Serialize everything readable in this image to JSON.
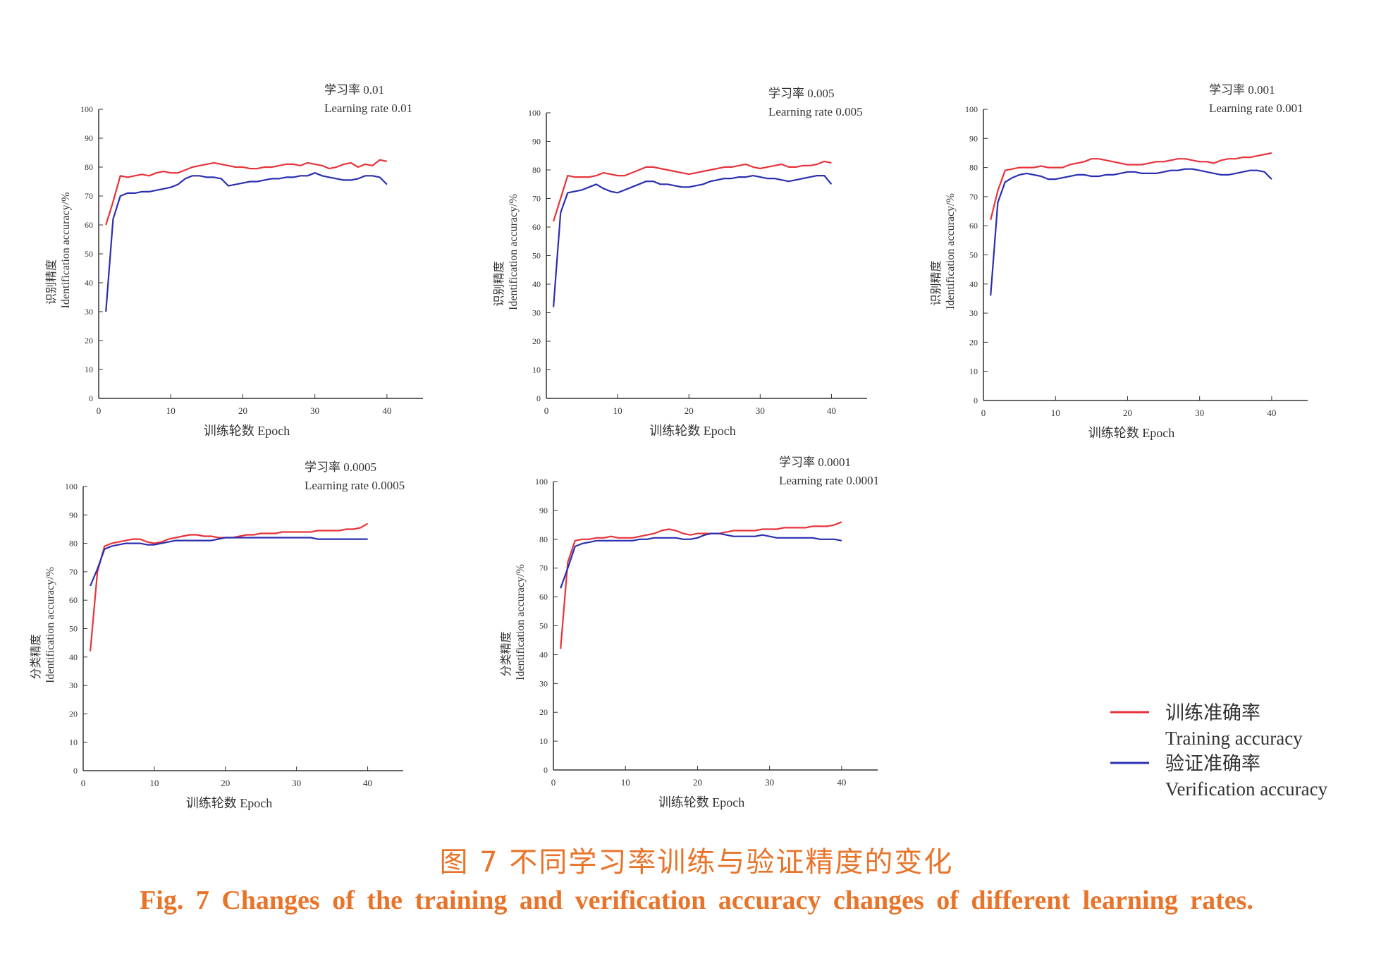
{
  "chart_data": [
    {
      "type": "line",
      "annotation_cn": "学习率 0.01",
      "annotation_en": "Learning rate 0.01",
      "ylabel_cn": "识别精度",
      "ylabel_en": "Identification accuracy/%",
      "xlabel": "训练轮数  Epoch",
      "xticks": [
        0,
        10,
        20,
        30,
        40
      ],
      "yticks": [
        0,
        10,
        20,
        30,
        40,
        50,
        60,
        70,
        80,
        90,
        100
      ],
      "xlim": [
        0,
        45
      ],
      "ylim": [
        0,
        100
      ],
      "series": [
        {
          "name": "训练准确率 Training accuracy",
          "x": [
            1,
            2,
            3,
            4,
            5,
            6,
            7,
            8,
            9,
            10,
            11,
            12,
            13,
            14,
            15,
            16,
            17,
            18,
            19,
            20,
            21,
            22,
            23,
            24,
            25,
            26,
            27,
            28,
            29,
            30,
            31,
            32,
            33,
            34,
            35,
            36,
            37,
            38,
            39,
            40
          ],
          "y": [
            60,
            68,
            77,
            76.5,
            77,
            77.5,
            77,
            78,
            78.5,
            78,
            78,
            79,
            80,
            80.5,
            81,
            81.5,
            81,
            80.5,
            80,
            80,
            79.5,
            79.5,
            80,
            80,
            80.5,
            81,
            81,
            80.5,
            81.5,
            81,
            80.5,
            79.5,
            80,
            81,
            81.5,
            80,
            81,
            80.5,
            82.5,
            82
          ]
        },
        {
          "name": "验证准确率 Verification accuracy",
          "x": [
            1,
            2,
            3,
            4,
            5,
            6,
            7,
            8,
            9,
            10,
            11,
            12,
            13,
            14,
            15,
            16,
            17,
            18,
            19,
            20,
            21,
            22,
            23,
            24,
            25,
            26,
            27,
            28,
            29,
            30,
            31,
            32,
            33,
            34,
            35,
            36,
            37,
            38,
            39,
            40
          ],
          "y": [
            30,
            62,
            70,
            71,
            71,
            71.5,
            71.5,
            72,
            72.5,
            73,
            74,
            76,
            77,
            77,
            76.5,
            76.5,
            76,
            73.5,
            74,
            74.5,
            75,
            75,
            75.5,
            76,
            76,
            76.5,
            76.5,
            77,
            77,
            78,
            77,
            76.5,
            76,
            75.5,
            75.5,
            76,
            77,
            77,
            76.5,
            74
          ]
        }
      ]
    },
    {
      "type": "line",
      "annotation_cn": "学习率 0.005",
      "annotation_en": "Learning rate 0.005",
      "ylabel_cn": "识别精度",
      "ylabel_en": "Identification accuracy/%",
      "xlabel": "训练轮数  Epoch",
      "xticks": [
        0,
        10,
        20,
        30,
        40
      ],
      "yticks": [
        0,
        10,
        20,
        30,
        40,
        50,
        60,
        70,
        80,
        90,
        100
      ],
      "xlim": [
        0,
        45
      ],
      "ylim": [
        0,
        100
      ],
      "series": [
        {
          "name": "训练准确率 Training accuracy",
          "x": [
            1,
            2,
            3,
            4,
            5,
            6,
            7,
            8,
            9,
            10,
            11,
            12,
            13,
            14,
            15,
            16,
            17,
            18,
            19,
            20,
            21,
            22,
            23,
            24,
            25,
            26,
            27,
            28,
            29,
            30,
            31,
            32,
            33,
            34,
            35,
            36,
            37,
            38,
            39,
            40
          ],
          "y": [
            62,
            70,
            78,
            77.5,
            77.5,
            77.5,
            78,
            79,
            78.5,
            78,
            78,
            79,
            80,
            81,
            81,
            80.5,
            80,
            79.5,
            79,
            78.5,
            79,
            79.5,
            80,
            80.5,
            81,
            81,
            81.5,
            82,
            81,
            80.5,
            81,
            81.5,
            82,
            81,
            81,
            81.5,
            81.5,
            82,
            83,
            82.5
          ]
        },
        {
          "name": "验证准确率 Verification accuracy",
          "x": [
            1,
            2,
            3,
            4,
            5,
            6,
            7,
            8,
            9,
            10,
            11,
            12,
            13,
            14,
            15,
            16,
            17,
            18,
            19,
            20,
            21,
            22,
            23,
            24,
            25,
            26,
            27,
            28,
            29,
            30,
            31,
            32,
            33,
            34,
            35,
            36,
            37,
            38,
            39,
            40
          ],
          "y": [
            32,
            65,
            72,
            72.5,
            73,
            74,
            75,
            73.5,
            72.5,
            72,
            73,
            74,
            75,
            76,
            76,
            75,
            75,
            74.5,
            74,
            74,
            74.5,
            75,
            76,
            76.5,
            77,
            77,
            77.5,
            77.5,
            78,
            77.5,
            77,
            77,
            76.5,
            76,
            76.5,
            77,
            77.5,
            78,
            78,
            75
          ]
        }
      ]
    },
    {
      "type": "line",
      "annotation_cn": "学习率 0.001",
      "annotation_en": "Learning rate 0.001",
      "ylabel_cn": "识别精度",
      "ylabel_en": "Identification accuracy/%",
      "xlabel": "训练轮数  Epoch",
      "xticks": [
        0,
        10,
        20,
        30,
        40
      ],
      "yticks": [
        0,
        10,
        20,
        30,
        40,
        50,
        60,
        70,
        80,
        90,
        100
      ],
      "xlim": [
        0,
        45
      ],
      "ylim": [
        0,
        100
      ],
      "series": [
        {
          "name": "训练准确率 Training accuracy",
          "x": [
            1,
            2,
            3,
            4,
            5,
            6,
            7,
            8,
            9,
            10,
            11,
            12,
            13,
            14,
            15,
            16,
            17,
            18,
            19,
            20,
            21,
            22,
            23,
            24,
            25,
            26,
            27,
            28,
            29,
            30,
            31,
            32,
            33,
            34,
            35,
            36,
            37,
            38,
            39,
            40
          ],
          "y": [
            62,
            72,
            79,
            79.5,
            80,
            80,
            80,
            80.5,
            80,
            80,
            80,
            81,
            81.5,
            82,
            83,
            83,
            82.5,
            82,
            81.5,
            81,
            81,
            81,
            81.5,
            82,
            82,
            82.5,
            83,
            83,
            82.5,
            82,
            82,
            81.5,
            82.5,
            83,
            83,
            83.5,
            83.5,
            84,
            84.5,
            85
          ]
        },
        {
          "name": "验证准确率 Verification accuracy",
          "x": [
            1,
            2,
            3,
            4,
            5,
            6,
            7,
            8,
            9,
            10,
            11,
            12,
            13,
            14,
            15,
            16,
            17,
            18,
            19,
            20,
            21,
            22,
            23,
            24,
            25,
            26,
            27,
            28,
            29,
            30,
            31,
            32,
            33,
            34,
            35,
            36,
            37,
            38,
            39,
            40
          ],
          "y": [
            36,
            68,
            75,
            76.5,
            77.5,
            78,
            77.5,
            77,
            76,
            76,
            76.5,
            77,
            77.5,
            77.5,
            77,
            77,
            77.5,
            77.5,
            78,
            78.5,
            78.5,
            78,
            78,
            78,
            78.5,
            79,
            79,
            79.5,
            79.5,
            79,
            78.5,
            78,
            77.5,
            77.5,
            78,
            78.5,
            79,
            79,
            78.5,
            76
          ]
        }
      ]
    },
    {
      "type": "line",
      "annotation_cn": "学习率 0.0005",
      "annotation_en": "Learning rate 0.0005",
      "ylabel_cn": "分类精度",
      "ylabel_en": "Identification accuracy/%",
      "xlabel": "训练轮数  Epoch",
      "xticks": [
        0,
        10,
        20,
        30,
        40
      ],
      "yticks": [
        0,
        10,
        20,
        30,
        40,
        50,
        60,
        70,
        80,
        90,
        100
      ],
      "xlim": [
        0,
        45
      ],
      "ylim": [
        0,
        100
      ],
      "series": [
        {
          "name": "训练准确率 Training accuracy",
          "x": [
            1,
            2,
            3,
            4,
            5,
            6,
            7,
            8,
            9,
            10,
            11,
            12,
            13,
            14,
            15,
            16,
            17,
            18,
            19,
            20,
            21,
            22,
            23,
            24,
            25,
            26,
            27,
            28,
            29,
            30,
            31,
            32,
            33,
            34,
            35,
            36,
            37,
            38,
            39,
            40
          ],
          "y": [
            42,
            70,
            79,
            80,
            80.5,
            81,
            81.5,
            81.5,
            80.5,
            80,
            80.5,
            81.5,
            82,
            82.5,
            83,
            83,
            82.5,
            82.5,
            82,
            82,
            82,
            82.5,
            83,
            83,
            83.5,
            83.5,
            83.5,
            84,
            84,
            84,
            84,
            84,
            84.5,
            84.5,
            84.5,
            84.5,
            85,
            85,
            85.5,
            87
          ]
        },
        {
          "name": "验证准确率 Verification accuracy",
          "x": [
            1,
            2,
            3,
            4,
            5,
            6,
            7,
            8,
            9,
            10,
            11,
            12,
            13,
            14,
            15,
            16,
            17,
            18,
            19,
            20,
            21,
            22,
            23,
            24,
            25,
            26,
            27,
            28,
            29,
            30,
            31,
            32,
            33,
            34,
            35,
            36,
            37,
            38,
            39,
            40
          ],
          "y": [
            65,
            71,
            78,
            79,
            79.5,
            80,
            80,
            80,
            79.5,
            79.5,
            80,
            80.5,
            81,
            81,
            81,
            81,
            81,
            81,
            81.5,
            82,
            82,
            82,
            82,
            82,
            82,
            82,
            82,
            82,
            82,
            82,
            82,
            82,
            81.5,
            81.5,
            81.5,
            81.5,
            81.5,
            81.5,
            81.5,
            81.5
          ]
        }
      ]
    },
    {
      "type": "line",
      "annotation_cn": "学习率 0.0001",
      "annotation_en": "Learning rate 0.0001",
      "ylabel_cn": "分类精度",
      "ylabel_en": "Identification accuracy/%",
      "xlabel": "训练轮数  Epoch",
      "xticks": [
        0,
        10,
        20,
        30,
        40
      ],
      "yticks": [
        0,
        10,
        20,
        30,
        40,
        50,
        60,
        70,
        80,
        90,
        100
      ],
      "xlim": [
        0,
        45
      ],
      "ylim": [
        0,
        100
      ],
      "series": [
        {
          "name": "训练准确率 Training accuracy",
          "x": [
            1,
            2,
            3,
            4,
            5,
            6,
            7,
            8,
            9,
            10,
            11,
            12,
            13,
            14,
            15,
            16,
            17,
            18,
            19,
            20,
            21,
            22,
            23,
            24,
            25,
            26,
            27,
            28,
            29,
            30,
            31,
            32,
            33,
            34,
            35,
            36,
            37,
            38,
            39,
            40
          ],
          "y": [
            42,
            72,
            79.5,
            80,
            80,
            80.5,
            80.5,
            81,
            80.5,
            80.5,
            80.5,
            81,
            81.5,
            82,
            83,
            83.5,
            83,
            82,
            81.5,
            82,
            82,
            82,
            82,
            82.5,
            83,
            83,
            83,
            83,
            83.5,
            83.5,
            83.5,
            84,
            84,
            84,
            84,
            84.5,
            84.5,
            84.5,
            85,
            86
          ]
        },
        {
          "name": "验证准确率 Verification accuracy",
          "x": [
            1,
            2,
            3,
            4,
            5,
            6,
            7,
            8,
            9,
            10,
            11,
            12,
            13,
            14,
            15,
            16,
            17,
            18,
            19,
            20,
            21,
            22,
            23,
            24,
            25,
            26,
            27,
            28,
            29,
            30,
            31,
            32,
            33,
            34,
            35,
            36,
            37,
            38,
            39,
            40
          ],
          "y": [
            63,
            70,
            77.5,
            78.5,
            79,
            79.5,
            79.5,
            79.5,
            79.5,
            79.5,
            79.5,
            80,
            80,
            80.5,
            80.5,
            80.5,
            80.5,
            80,
            80,
            80.5,
            81.5,
            82,
            82,
            81.5,
            81,
            81,
            81,
            81,
            81.5,
            81,
            80.5,
            80.5,
            80.5,
            80.5,
            80.5,
            80.5,
            80,
            80,
            80,
            79.5
          ]
        }
      ]
    }
  ],
  "legend": {
    "items": [
      {
        "label_cn": "训练准确率",
        "label_en": "Training accuracy",
        "color": "#e8333a"
      },
      {
        "label_cn": "验证准确率",
        "label_en": "Verification accuracy",
        "color": "#2a2fb0"
      }
    ]
  },
  "caption": {
    "cn": "图 7   不同学习率训练与验证精度的变化",
    "en": "Fig.  7    Changes of the training and verification accuracy changes of different learning rates."
  }
}
